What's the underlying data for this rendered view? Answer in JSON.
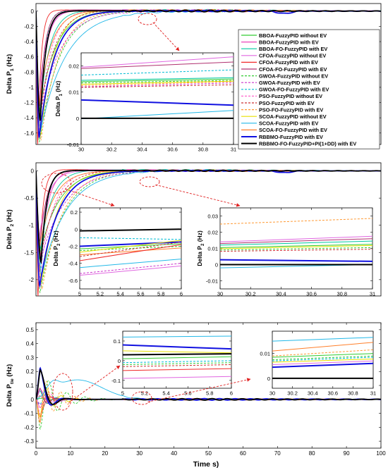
{
  "figure": {
    "xlabel": "Time s)"
  },
  "legend": {
    "entries": [
      {
        "label": "BBOA-FuzzyPID without EV",
        "color": "#33cc33",
        "dash": false
      },
      {
        "label": "BBOA-FuzzyPID with EV",
        "color": "#ee44bb",
        "dash": false
      },
      {
        "label": "BBOA-FO-FuzzyPID with EV",
        "color": "#00c8a0",
        "dash": false
      },
      {
        "label": "CFOA-FuzzyPID without EV",
        "color": "#e066e0",
        "dash": false
      },
      {
        "label": "CFOA-FuzzyPID with EV",
        "color": "#f02828",
        "dash": false
      },
      {
        "label": "CFOA-FO-FuzzyPID with EV",
        "color": "#b03070",
        "dash": false
      },
      {
        "label": "GWOA-FuzzyPID without EV",
        "color": "#33cc33",
        "dash": true
      },
      {
        "label": "GWOA-FuzzyPID with EV",
        "color": "#cc33cc",
        "dash": true
      },
      {
        "label": "GWOA-FO-FuzzyPID with EV",
        "color": "#00bcd4",
        "dash": true
      },
      {
        "label": "PSO-FuzzyPID without EV",
        "color": "#ff66cc",
        "dash": true
      },
      {
        "label": "PSO-FuzzyPID with EV",
        "color": "#cc3333",
        "dash": true
      },
      {
        "label": "PSO-FO-FuzzyPID with EV",
        "color": "#ff9933",
        "dash": true
      },
      {
        "label": "SCOA-FuzzyPID without EV",
        "color": "#e8e000",
        "dash": false
      },
      {
        "label": "SCOA-FuzzyPID with EV",
        "color": "#22b8e8",
        "dash": false
      },
      {
        "label": "SCOA-FO-FuzzyPID with EV",
        "color": "#ff7f2a",
        "dash": false
      },
      {
        "label": "RBBMO-FuzzyPID with EV",
        "color": "#1010e0",
        "dash": false
      },
      {
        "label": "RBBMO-FO-FuzzyPID+PI(1+DD) with EV",
        "color": "#000000",
        "dash": false
      }
    ]
  },
  "chart_data": [
    {
      "id": "p1-main",
      "type": "line",
      "ylabel": "Delta P1 (Hz)",
      "ylabel_main": "Delta P",
      "ylabel_sub": "1",
      "ylabel_unit": " (Hz)",
      "xlim": [
        0,
        100
      ],
      "ylim": [
        -1.75,
        0.1
      ],
      "xticks": [],
      "yticks": [
        0,
        -0.2,
        -0.4,
        -0.6,
        -0.8,
        -1,
        -1.2,
        -1.4,
        -1.6
      ],
      "ytick_labels": [
        "0",
        "-0.2",
        "-0.4",
        "-0.6",
        "-0.8",
        "-1",
        "-1.2",
        "-1.4",
        "-1.6"
      ],
      "response": {
        "min_range": [
          -1.75,
          -1.25
        ],
        "peak_time_range": [
          0.5,
          1.5
        ],
        "tau_range": [
          1.0,
          6.0
        ],
        "overshoot_range": [
          0.0,
          0.03
        ]
      },
      "series": []
    },
    {
      "id": "p1-inset",
      "type": "line",
      "ylabel": "Delta P1 (Hz)",
      "ylabel_main": "Delta P",
      "ylabel_sub": "1",
      "ylabel_unit": " (Hz)",
      "xlim": [
        30,
        31
      ],
      "ylim": [
        -0.01,
        0.025
      ],
      "xticks": [
        30,
        30.2,
        30.4,
        30.6,
        30.8,
        31
      ],
      "xtick_labels": [
        "30",
        "30.2",
        "30.4",
        "30.6",
        "30.8",
        "31"
      ],
      "yticks": [
        -0.01,
        0,
        0.01,
        0.02
      ],
      "ytick_labels": [
        "-0.01",
        "0",
        "0.01",
        "0.02"
      ],
      "series": [
        {
          "x": [
            30,
            31
          ],
          "y": [
            0.0195,
            0.0235
          ]
        },
        {
          "x": [
            30,
            31
          ],
          "y": [
            0.019,
            0.0215
          ]
        },
        {
          "x": [
            30,
            31
          ],
          "y": [
            0.0165,
            0.0185
          ]
        },
        {
          "x": [
            30,
            31
          ],
          "y": [
            0.0145,
            0.0155
          ]
        },
        {
          "x": [
            30,
            31
          ],
          "y": [
            0.014,
            0.015
          ]
        },
        {
          "x": [
            30,
            31
          ],
          "y": [
            0.0135,
            0.0145
          ]
        },
        {
          "x": [
            30,
            31
          ],
          "y": [
            0.013,
            0.0142
          ]
        },
        {
          "x": [
            30,
            31
          ],
          "y": [
            0.0125,
            0.014
          ]
        },
        {
          "x": [
            30,
            31
          ],
          "y": [
            0.012,
            0.0135
          ]
        },
        {
          "x": [
            30,
            31
          ],
          "y": [
            0.0118,
            0.0128
          ]
        },
        {
          "x": [
            30,
            31
          ],
          "y": [
            -0.0002,
            0.003
          ]
        },
        {
          "x": [
            30,
            31
          ],
          "y": [
            0.007,
            0.005
          ]
        },
        {
          "x": [
            30,
            31
          ],
          "y": [
            0.0,
            0.0
          ]
        }
      ]
    },
    {
      "id": "p2-main",
      "type": "line",
      "ylabel": "Delta P2 (Hz)",
      "ylabel_main": "Delta P",
      "ylabel_sub": "2",
      "ylabel_unit": " (Hz)",
      "xlim": [
        0,
        100
      ],
      "ylim": [
        -2.3,
        0.15
      ],
      "xticks": [],
      "yticks": [
        0,
        -0.5,
        -1,
        -1.5,
        -2
      ],
      "ytick_labels": [
        "0",
        "-0.5",
        "-1",
        "-1.5",
        "-2"
      ],
      "response": {
        "min_range": [
          -2.3,
          -1.3
        ],
        "peak_time_range": [
          0.6,
          1.8
        ],
        "tau_range": [
          1.2,
          7.0
        ],
        "overshoot_range": [
          0.0,
          0.04
        ]
      },
      "series": []
    },
    {
      "id": "p2-inset-a",
      "type": "line",
      "ylabel": "Delta P2 (Hz)",
      "ylabel_main": "Delta P",
      "ylabel_sub": "2",
      "ylabel_unit": " (Hz)",
      "xlim": [
        5,
        6
      ],
      "ylim": [
        -0.7,
        0.25
      ],
      "xticks": [
        5,
        5.2,
        5.4,
        5.6,
        5.8,
        6
      ],
      "xtick_labels": [
        "5",
        "5.2",
        "5.4",
        "5.6",
        "5.8",
        "6"
      ],
      "yticks": [
        -0.6,
        -0.4,
        -0.2,
        0,
        0.2
      ],
      "ytick_labels": [
        "-0.6",
        "-0.4",
        "-0.2",
        "0",
        "0.2"
      ],
      "series": [
        {
          "x": [
            5,
            6
          ],
          "y": [
            -0.02,
            0.0
          ]
        },
        {
          "x": [
            5,
            6
          ],
          "y": [
            -0.1,
            -0.12
          ]
        },
        {
          "x": [
            5,
            6
          ],
          "y": [
            -0.2,
            -0.15
          ]
        },
        {
          "x": [
            5,
            6
          ],
          "y": [
            -0.23,
            -0.17
          ]
        },
        {
          "x": [
            5,
            6
          ],
          "y": [
            -0.25,
            -0.2
          ]
        },
        {
          "x": [
            5,
            6
          ],
          "y": [
            -0.27,
            -0.13
          ]
        },
        {
          "x": [
            5,
            6
          ],
          "y": [
            -0.3,
            -0.22
          ]
        },
        {
          "x": [
            5,
            6
          ],
          "y": [
            -0.32,
            -0.15
          ]
        },
        {
          "x": [
            5,
            6
          ],
          "y": [
            -0.37,
            -0.18
          ]
        },
        {
          "x": [
            5,
            6
          ],
          "y": [
            -0.45,
            -0.35
          ]
        },
        {
          "x": [
            5,
            6
          ],
          "y": [
            -0.52,
            -0.4
          ]
        },
        {
          "x": [
            5,
            6
          ],
          "y": [
            -0.54,
            -0.43
          ]
        }
      ]
    },
    {
      "id": "p2-inset-b",
      "type": "line",
      "ylabel": "Delta P2 (Hz)",
      "ylabel_main": "Delta P",
      "ylabel_sub": "2",
      "ylabel_unit": " (Hz)",
      "xlim": [
        30,
        31
      ],
      "ylim": [
        -0.015,
        0.035
      ],
      "xticks": [
        30,
        30.2,
        30.4,
        30.6,
        30.8,
        31
      ],
      "xtick_labels": [
        "30",
        "30.2",
        "30.4",
        "30.6",
        "30.8",
        "31"
      ],
      "yticks": [
        -0.01,
        0,
        0.01,
        0.02,
        0.03
      ],
      "ytick_labels": [
        "-0.01",
        "0",
        "0.01",
        "0.02",
        "0.03"
      ],
      "series": [
        {
          "x": [
            30,
            31
          ],
          "y": [
            0.025,
            0.0285
          ]
        },
        {
          "x": [
            30,
            31
          ],
          "y": [
            0.014,
            0.0175
          ]
        },
        {
          "x": [
            30,
            31
          ],
          "y": [
            0.013,
            0.016
          ]
        },
        {
          "x": [
            30,
            31
          ],
          "y": [
            0.012,
            0.0145
          ]
        },
        {
          "x": [
            30,
            31
          ],
          "y": [
            0.0105,
            0.0125
          ]
        },
        {
          "x": [
            30,
            31
          ],
          "y": [
            0.0098,
            0.0118
          ]
        },
        {
          "x": [
            30,
            31
          ],
          "y": [
            0.009,
            0.0105
          ]
        },
        {
          "x": [
            30,
            31
          ],
          "y": [
            0.0082,
            0.0095
          ]
        },
        {
          "x": [
            30,
            31
          ],
          "y": [
            0.003,
            0.002
          ]
        },
        {
          "x": [
            30,
            31
          ],
          "y": [
            -0.002,
            0.0
          ]
        },
        {
          "x": [
            30,
            31
          ],
          "y": [
            0.0,
            0.0
          ]
        }
      ]
    },
    {
      "id": "ptie-main",
      "type": "line",
      "ylabel": "Delta Ptie (Hz)",
      "ylabel_main": "Delta P",
      "ylabel_sub": "tie",
      "ylabel_unit": " (Hz)",
      "xlim": [
        0,
        100
      ],
      "ylim": [
        -0.35,
        0.55
      ],
      "xticks": [
        0,
        10,
        20,
        30,
        40,
        50,
        60,
        70,
        80,
        90,
        100
      ],
      "xtick_labels": [
        "0",
        "10",
        "20",
        "30",
        "40",
        "50",
        "60",
        "70",
        "80",
        "90",
        "100"
      ],
      "yticks": [
        0.5,
        0.4,
        0.3,
        0.2,
        0.1,
        0,
        -0.1,
        -0.2,
        -0.3
      ],
      "ytick_labels": [
        "0.5",
        "0.4",
        "0.3",
        "0.2",
        "0.1",
        "0",
        "-0.1",
        "-0.2",
        "-0.3"
      ],
      "series": []
    },
    {
      "id": "ptie-inset-a",
      "type": "line",
      "ylabel": "",
      "xlim": [
        5,
        6
      ],
      "ylim": [
        -0.14,
        0.15
      ],
      "xticks": [
        5,
        5.2,
        5.4,
        5.6,
        5.8,
        6
      ],
      "xtick_labels": [
        "5",
        "5.2",
        "5.4",
        "5.6",
        "5.8",
        "6"
      ],
      "yticks": [
        0.1,
        0,
        -0.1
      ],
      "ytick_labels": [
        "0.1",
        "0",
        "-0.1"
      ],
      "series": [
        {
          "x": [
            5,
            6
          ],
          "y": [
            0.12,
            0.125
          ]
        },
        {
          "x": [
            5,
            6
          ],
          "y": [
            0.08,
            0.06
          ]
        },
        {
          "x": [
            5,
            6
          ],
          "y": [
            0.05,
            0.04
          ]
        },
        {
          "x": [
            5,
            6
          ],
          "y": [
            0.03,
            0.035
          ]
        },
        {
          "x": [
            5,
            6
          ],
          "y": [
            0.01,
            0.02
          ]
        },
        {
          "x": [
            5,
            6
          ],
          "y": [
            -0.01,
            0.0
          ]
        },
        {
          "x": [
            5,
            6
          ],
          "y": [
            -0.02,
            -0.01
          ]
        },
        {
          "x": [
            5,
            6
          ],
          "y": [
            -0.03,
            -0.02
          ]
        },
        {
          "x": [
            5,
            6
          ],
          "y": [
            -0.05,
            -0.04
          ]
        },
        {
          "x": [
            5,
            6
          ],
          "y": [
            -0.09,
            -0.08
          ]
        }
      ]
    },
    {
      "id": "ptie-inset-b",
      "type": "line",
      "ylabel": "",
      "xlim": [
        30,
        31
      ],
      "ylim": [
        -0.004,
        0.019
      ],
      "xticks": [
        30,
        30.2,
        30.4,
        30.6,
        30.8,
        31
      ],
      "xtick_labels": [
        "30",
        "30.2",
        "30.4",
        "30.6",
        "30.8",
        "31"
      ],
      "yticks": [
        0.01,
        0
      ],
      "ytick_labels": [
        "0.01",
        "0"
      ],
      "series": [
        {
          "x": [
            30,
            31
          ],
          "y": [
            0.015,
            0.0165
          ]
        },
        {
          "x": [
            30,
            31
          ],
          "y": [
            0.011,
            0.0145
          ]
        },
        {
          "x": [
            30,
            31
          ],
          "y": [
            0.009,
            0.0115
          ]
        },
        {
          "x": [
            30,
            31
          ],
          "y": [
            0.0085,
            0.01
          ]
        },
        {
          "x": [
            30,
            31
          ],
          "y": [
            0.0075,
            0.009
          ]
        },
        {
          "x": [
            30,
            31
          ],
          "y": [
            0.007,
            0.0085
          ]
        },
        {
          "x": [
            30,
            31
          ],
          "y": [
            0.0065,
            0.0078
          ]
        },
        {
          "x": [
            30,
            31
          ],
          "y": [
            0.0055,
            0.007
          ]
        },
        {
          "x": [
            30,
            31
          ],
          "y": [
            0.0045,
            0.006
          ]
        },
        {
          "x": [
            30,
            31
          ],
          "y": [
            0.0,
            0.0
          ]
        }
      ]
    }
  ]
}
